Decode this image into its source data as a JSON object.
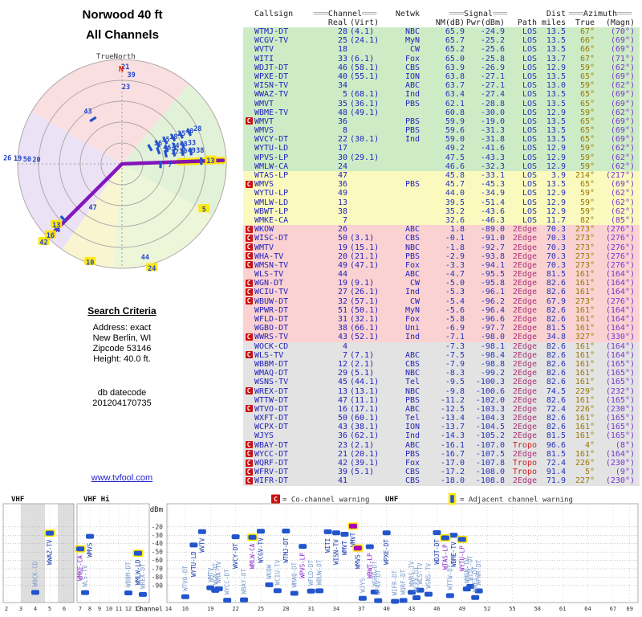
{
  "title": {
    "line1": "Norwood 40 ft",
    "line2": "All Channels"
  },
  "criteria": {
    "heading": "Search Criteria",
    "line1": "Address: exact",
    "line2": "New Berlin, WI",
    "line3": "Zipcode 53146",
    "line4": "Height: 40.0 ft.",
    "db_label": "db datecode",
    "db_value": "201204170735"
  },
  "link_text": "www.tvfool.com",
  "table": {
    "warn_symbol": "C",
    "headers": {
      "callsign": "Callsign",
      "channel": "Channel",
      "netwk": "Netwk",
      "signal": "Signal",
      "dist": "Dist",
      "azimuth": "Azimuth",
      "deco": "═══",
      "real": "Real",
      "virt": "(Virt)",
      "nm": "NM(dB)",
      "pwr": "Pwr(dBm)",
      "path": "Path",
      "miles": "miles",
      "true": "True",
      "magn": "(Magn)"
    }
  },
  "radar": {
    "true_north_label": "TrueNorth",
    "north_label": "N",
    "sectors": [
      {
        "a1": 300,
        "a2": 400,
        "color": "#f9d7da"
      },
      {
        "a1": 40,
        "a2": 120,
        "color": "#d9efcf"
      },
      {
        "a1": 120,
        "a2": 185,
        "color": "#e9f4cf"
      },
      {
        "a1": 185,
        "a2": 215,
        "color": "#f7f2c6"
      },
      {
        "a1": 215,
        "a2": 300,
        "color": "#e6dbf4"
      }
    ],
    "beams": [
      {
        "az": 88,
        "r1": 0.55,
        "r2": 0.97,
        "glow": true
      },
      {
        "az": 88,
        "r1": 0.02,
        "r2": 0.97,
        "glow": false
      },
      {
        "az": 225,
        "r1": 0.0,
        "r2": 1.02,
        "glow": false
      }
    ],
    "markers": [
      [
        21,
        2,
        0.93,
        0,
        0
      ],
      [
        39,
        6,
        0.86,
        0,
        0
      ],
      [
        23,
        3,
        0.74,
        0,
        0
      ],
      [
        43,
        327,
        0.6,
        1,
        0
      ],
      [
        26,
        273,
        1.1,
        0,
        0
      ],
      [
        19,
        273,
        1.0,
        0,
        0
      ],
      [
        50,
        273,
        0.91,
        0,
        0
      ],
      [
        20,
        273,
        0.82,
        0,
        0
      ],
      [
        47,
        214,
        0.5,
        0,
        0
      ],
      [
        42,
        225,
        1.06,
        1,
        1
      ],
      [
        16,
        225,
        0.97,
        1,
        1
      ],
      [
        13,
        227,
        0.86,
        1,
        1
      ],
      [
        10,
        198,
        0.99,
        0,
        1
      ],
      [
        24,
        164,
        1.04,
        0,
        1
      ],
      [
        44,
        166,
        0.92,
        0,
        0
      ],
      [
        5,
        119,
        0.9,
        0,
        1
      ],
      [
        36,
        60,
        0.4,
        1,
        0
      ],
      [
        35,
        61,
        0.48,
        1,
        0
      ],
      [
        18,
        62,
        0.56,
        1,
        0
      ],
      [
        25,
        63,
        0.64,
        1,
        0
      ],
      [
        40,
        64,
        0.72,
        1,
        0
      ],
      [
        28,
        65,
        0.8,
        1,
        0
      ],
      [
        46,
        70,
        0.46,
        1,
        0
      ],
      [
        34,
        71,
        0.54,
        1,
        0
      ],
      [
        48,
        72,
        0.62,
        1,
        0
      ],
      [
        33,
        73,
        0.7,
        1,
        0
      ],
      [
        17,
        77,
        0.52,
        1,
        0
      ],
      [
        30,
        78,
        0.6,
        1,
        0
      ],
      [
        49,
        79,
        0.68,
        1,
        0
      ],
      [
        38,
        80,
        0.76,
        1,
        0
      ],
      [
        13,
        88,
        0.85,
        1,
        1
      ],
      [
        7,
        91,
        0.46,
        1,
        0
      ]
    ]
  },
  "spectrum": {
    "dbm_label": "dBm",
    "channel_label": "Channel",
    "bands": [
      {
        "label": "VHF"
      },
      {
        "label": "VHF Hi"
      },
      {
        "label": "UHF"
      }
    ],
    "legend_cc_symbol": "C",
    "legend_cc": "= Co-channel warning",
    "legend_adj": "= Adjacent channel warning",
    "yticks": [
      -20,
      -30,
      -40,
      -50,
      -60,
      -70,
      -80,
      -90
    ],
    "xticks_vlo": [
      2,
      3,
      4,
      5,
      6
    ],
    "xticks_vhi": [
      7,
      8,
      9,
      10,
      11,
      12,
      13
    ],
    "xticks_uhf": [
      14,
      16,
      19,
      22,
      25,
      28,
      31,
      34,
      37,
      40,
      43,
      46,
      49,
      52,
      55,
      58,
      61,
      64,
      67,
      69
    ]
  },
  "chart_data": {
    "type": "table",
    "title": "Norwood 40 ft - All Channels",
    "columns": [
      "Callsign",
      "Real Ch",
      "(Virt)",
      "Netwk",
      "NM(dB)",
      "Pwr(dBm)",
      "Path",
      "Dist miles",
      "Azimuth True",
      "Azimuth (Magn)",
      "co_channel_warning",
      "tier",
      "adjacent_warning"
    ],
    "rows": [
      [
        "WTMJ-DT",
        28,
        "(4.1)",
        "NBC",
        65.9,
        -24.9,
        "LOS",
        13.5,
        67,
        70,
        0,
        "g",
        0
      ],
      [
        "WCGV-TV",
        25,
        "(24.1)",
        "MyN",
        65.7,
        -25.2,
        "LOS",
        13.5,
        66,
        69,
        0,
        "g",
        0
      ],
      [
        "WVTV",
        18,
        "",
        "CW",
        65.2,
        -25.6,
        "LOS",
        13.5,
        66,
        69,
        0,
        "g",
        0
      ],
      [
        "WITI",
        33,
        "(6.1)",
        "Fox",
        65.0,
        -25.8,
        "LOS",
        13.7,
        67,
        71,
        0,
        "g",
        0
      ],
      [
        "WDJT-DT",
        46,
        "(58.1)",
        "CBS",
        63.9,
        -26.9,
        "LOS",
        12.9,
        59,
        62,
        0,
        "g",
        0
      ],
      [
        "WPXE-DT",
        40,
        "(55.1)",
        "ION",
        63.8,
        -27.1,
        "LOS",
        13.5,
        65,
        69,
        0,
        "g",
        0
      ],
      [
        "WISN-TV",
        34,
        "",
        "ABC",
        63.7,
        -27.1,
        "LOS",
        13.0,
        59,
        62,
        0,
        "g",
        0
      ],
      [
        "WWAZ-TV",
        5,
        "(68.1)",
        "Ind",
        63.4,
        -27.4,
        "LOS",
        13.5,
        65,
        69,
        0,
        "g",
        1
      ],
      [
        "WMVT",
        35,
        "(36.1)",
        "PBS",
        62.1,
        -28.8,
        "LOS",
        13.5,
        65,
        69,
        0,
        "g",
        0
      ],
      [
        "WBME-TV",
        48,
        "(49.1)",
        "",
        60.8,
        -30.0,
        "LOS",
        12.9,
        59,
        62,
        0,
        "g",
        0
      ],
      [
        "WMVT",
        36,
        "",
        "PBS",
        59.9,
        -19.0,
        "LOS",
        13.5,
        65,
        69,
        1,
        "g",
        1
      ],
      [
        "WMVS",
        8,
        "",
        "PBS",
        59.6,
        -31.3,
        "LOS",
        13.5,
        65,
        69,
        0,
        "g",
        0
      ],
      [
        "WVCY-DT",
        22,
        "(30.1)",
        "Ind",
        59.0,
        -31.8,
        "LOS",
        13.5,
        65,
        69,
        0,
        "g",
        0
      ],
      [
        "WYTU-LD",
        17,
        "",
        "",
        49.2,
        -41.6,
        "LOS",
        12.9,
        59,
        62,
        0,
        "g",
        0
      ],
      [
        "WPVS-LP",
        30,
        "(29.1)",
        "",
        47.5,
        -43.3,
        "LOS",
        12.9,
        59,
        62,
        0,
        "g",
        0
      ],
      [
        "WMLW-CA",
        24,
        "",
        "",
        46.6,
        -32.3,
        "LOS",
        12.9,
        59,
        62,
        0,
        "g",
        1
      ],
      [
        "WTAS-LP",
        47,
        "",
        "",
        45.8,
        -33.1,
        "LOS",
        3.9,
        214,
        217,
        0,
        "y",
        1
      ],
      [
        "WMVS",
        36,
        "",
        "PBS",
        45.7,
        -45.3,
        "LOS",
        13.5,
        65,
        69,
        1,
        "y",
        1
      ],
      [
        "WYTU-LP",
        49,
        "",
        "",
        44.0,
        -34.9,
        "LOS",
        12.9,
        59,
        62,
        0,
        "y",
        1
      ],
      [
        "WMLW-LD",
        13,
        "",
        "",
        39.5,
        -51.4,
        "LOS",
        12.9,
        59,
        62,
        0,
        "y",
        1
      ],
      [
        "WBWT-LP",
        38,
        "",
        "",
        35.2,
        -43.6,
        "LOS",
        12.9,
        59,
        62,
        0,
        "y",
        0
      ],
      [
        "WMKE-CA",
        7,
        "",
        "",
        32.6,
        -46.3,
        "LOS",
        11.7,
        82,
        85,
        0,
        "y",
        1
      ],
      [
        "WKOW",
        26,
        "",
        "ABC",
        1.8,
        -89.0,
        "2Edge",
        70.3,
        273,
        276,
        1,
        "p",
        0
      ],
      [
        "WISC-DT",
        50,
        "(3.1)",
        "CBS",
        -0.1,
        -91.0,
        "2Edge",
        70.3,
        273,
        276,
        1,
        "p",
        0
      ],
      [
        "WMTV",
        19,
        "(15.1)",
        "NBC",
        -1.8,
        -92.7,
        "2Edge",
        70.3,
        273,
        276,
        1,
        "p",
        0
      ],
      [
        "WHA-TV",
        20,
        "(21.1)",
        "PBS",
        -2.9,
        -93.8,
        "2Edge",
        70.3,
        273,
        276,
        1,
        "p",
        0
      ],
      [
        "WMSN-TV",
        49,
        "(47.1)",
        "Fox",
        -3.3,
        -94.1,
        "2Edge",
        70.3,
        273,
        276,
        1,
        "p",
        0
      ],
      [
        "WLS-TV",
        44,
        "",
        "ABC",
        -4.7,
        -95.5,
        "2Edge",
        81.5,
        161,
        164,
        0,
        "p",
        0
      ],
      [
        "WGN-DT",
        19,
        "(9.1)",
        "CW",
        -5.0,
        -95.8,
        "2Edge",
        82.6,
        161,
        164,
        1,
        "p",
        0
      ],
      [
        "WCIU-TV",
        27,
        "(26.1)",
        "Ind",
        -5.3,
        -96.1,
        "2Edge",
        82.6,
        161,
        164,
        1,
        "p",
        0
      ],
      [
        "WBUW-DT",
        32,
        "(57.1)",
        "CW",
        -5.4,
        -96.2,
        "2Edge",
        67.9,
        273,
        276,
        1,
        "p",
        0
      ],
      [
        "WPWR-DT",
        51,
        "(50.1)",
        "MyN",
        -5.6,
        -96.4,
        "2Edge",
        82.6,
        161,
        164,
        0,
        "p",
        0
      ],
      [
        "WFLD-DT",
        31,
        "(32.1)",
        "Fox",
        -5.8,
        -96.6,
        "2Edge",
        82.6,
        161,
        164,
        0,
        "p",
        0
      ],
      [
        "WGBO-DT",
        38,
        "(66.1)",
        "Uni",
        -6.9,
        -97.7,
        "2Edge",
        81.5,
        161,
        164,
        0,
        "p",
        0
      ],
      [
        "WWRS-TV",
        43,
        "(52.1)",
        "Ind",
        -7.1,
        -98.0,
        "2Edge",
        34.8,
        327,
        330,
        1,
        "p",
        0
      ],
      [
        "WOCK-CD",
        4,
        "",
        "",
        -7.3,
        -98.1,
        "2Edge",
        82.6,
        161,
        164,
        0,
        "e",
        0
      ],
      [
        "WLS-TV",
        7,
        "(7.1)",
        "ABC",
        -7.5,
        -98.4,
        "2Edge",
        82.6,
        161,
        164,
        1,
        "e",
        0
      ],
      [
        "WBBM-DT",
        12,
        "(2.1)",
        "CBS",
        -7.9,
        -98.8,
        "2Edge",
        82.6,
        161,
        165,
        0,
        "e",
        0
      ],
      [
        "WMAQ-DT",
        29,
        "(5.1)",
        "NBC",
        -8.3,
        -99.2,
        "2Edge",
        82.6,
        161,
        165,
        0,
        "e",
        0
      ],
      [
        "WSNS-TV",
        45,
        "(44.1)",
        "Tel",
        -9.5,
        -100.3,
        "2Edge",
        82.6,
        161,
        165,
        0,
        "e",
        0
      ],
      [
        "WREX-DT",
        13,
        "(13.1)",
        "NBC",
        -9.8,
        -100.6,
        "2Edge",
        74.5,
        229,
        232,
        1,
        "e",
        0
      ],
      [
        "WTTW-DT",
        47,
        "(11.1)",
        "PBS",
        -11.2,
        -102.0,
        "2Edge",
        82.6,
        161,
        165,
        0,
        "e",
        0
      ],
      [
        "WTVO-DT",
        16,
        "(17.1)",
        "ABC",
        -12.5,
        -103.3,
        "2Edge",
        72.4,
        226,
        230,
        1,
        "e",
        0
      ],
      [
        "WXFT-DT",
        50,
        "(60.1)",
        "Tel",
        -13.4,
        -104.3,
        "2Edge",
        82.6,
        161,
        165,
        0,
        "e",
        0
      ],
      [
        "WCPX-DT",
        43,
        "(38.1)",
        "ION",
        -13.7,
        -104.5,
        "2Edge",
        82.6,
        161,
        165,
        0,
        "e",
        0
      ],
      [
        "WJYS",
        36,
        "(62.1)",
        "Ind",
        -14.3,
        -105.2,
        "2Edge",
        81.5,
        161,
        165,
        0,
        "e",
        0
      ],
      [
        "WBAY-DT",
        23,
        "(2.1)",
        "ABC",
        -16.1,
        -107.0,
        "Tropo",
        96.6,
        4,
        8,
        1,
        "e",
        0
      ],
      [
        "WYCC-DT",
        21,
        "(20.1)",
        "PBS",
        -16.7,
        -107.5,
        "2Edge",
        81.5,
        161,
        164,
        1,
        "e",
        0
      ],
      [
        "WQRF-DT",
        42,
        "(39.1)",
        "Fox",
        -17.0,
        -107.8,
        "Tropo",
        72.4,
        226,
        230,
        1,
        "e",
        0
      ],
      [
        "WFRV-DT",
        39,
        "(5.1)",
        "CBS",
        -17.2,
        -108.0,
        "Tropo",
        91.4,
        5,
        9,
        1,
        "e",
        0
      ],
      [
        "WIFR-DT",
        41,
        "",
        "CBS",
        -18.0,
        -108.8,
        "2Edge",
        71.9,
        227,
        230,
        1,
        "e",
        0
      ]
    ]
  }
}
